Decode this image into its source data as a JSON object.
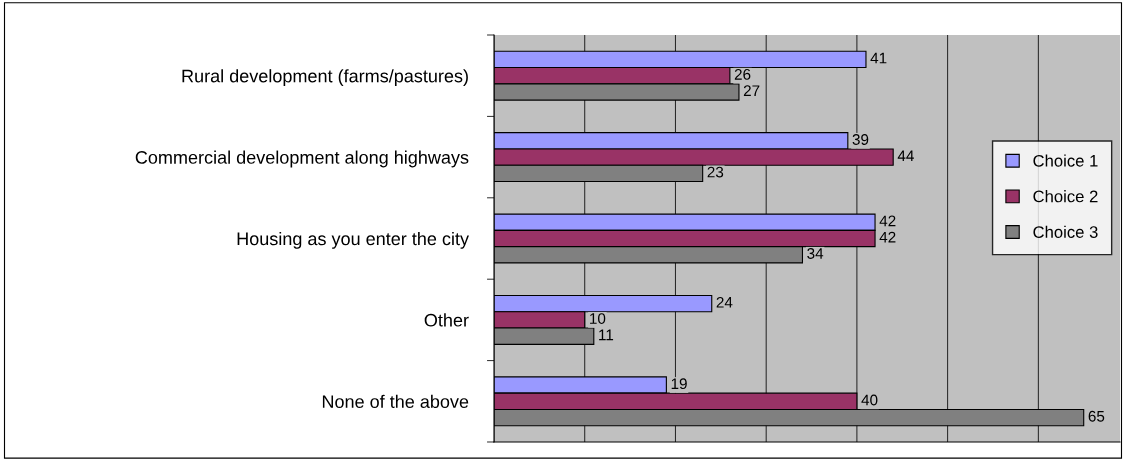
{
  "chart_data": {
    "type": "bar",
    "orientation": "horizontal",
    "categories": [
      "Rural development (farms/pastures)",
      "Commercial development along highways",
      "Housing as you enter the city",
      "Other",
      "None of the above"
    ],
    "series": [
      {
        "name": "Choice 1",
        "color": "#9999ff",
        "values": [
          41,
          39,
          42,
          24,
          19
        ]
      },
      {
        "name": "Choice 2",
        "color": "#993366",
        "values": [
          26,
          44,
          42,
          10,
          40
        ]
      },
      {
        "name": "Choice 3",
        "color": "#808080",
        "values": [
          27,
          23,
          34,
          11,
          65
        ]
      }
    ],
    "xlim": [
      0,
      69
    ],
    "xticks": [
      {
        "value": 0,
        "label": null
      },
      {
        "value": 10,
        "label": null
      },
      {
        "value": 20,
        "label": null
      },
      {
        "value": 30,
        "label": null
      },
      {
        "value": 40,
        "label": null
      },
      {
        "value": 50,
        "label": null
      },
      {
        "value": 60,
        "label": null
      }
    ],
    "grid": "x",
    "legend": "right",
    "tick_labels": "y",
    "data_labels": true
  }
}
